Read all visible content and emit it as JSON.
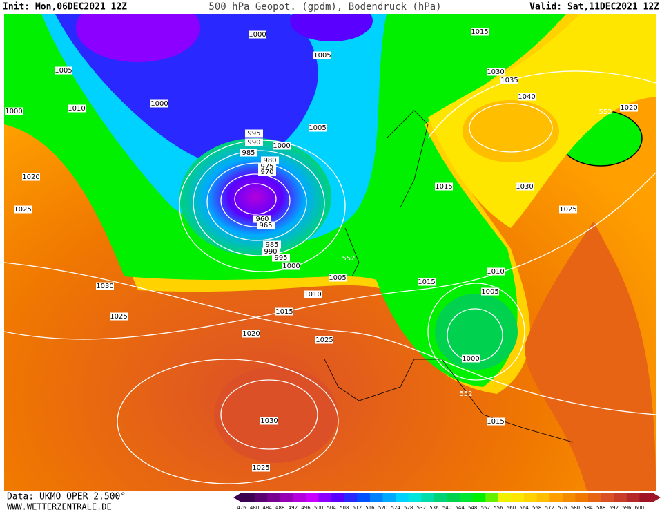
{
  "header": {
    "init": "Init: Mon,06DEC2021 12Z",
    "title": "500 hPa Geopot. (gpdm), Bodendruck (hPa)",
    "valid": "Valid: Sat,11DEC2021 12Z"
  },
  "footer": {
    "data_source": "Data: UKMO OPER 2.500°",
    "website": "WWW.WETTERZENTRALE.DE"
  },
  "map": {
    "isobar_labels": [
      1000,
      1005,
      1000,
      1010,
      1000,
      1005,
      1015,
      1030,
      1035,
      1040,
      1020,
      1005,
      995,
      990,
      1000,
      985,
      980,
      975,
      970,
      1020,
      1025,
      1015,
      1030,
      1025,
      960,
      965,
      985,
      990,
      995,
      1000,
      1005,
      1010,
      1015,
      1005,
      1010,
      1030,
      1015,
      1025,
      1020,
      1025,
      1000,
      1030,
      1015,
      1025
    ],
    "geopotential_labels": [
      552,
      552,
      552
    ]
  },
  "colorbar": {
    "labels": [
      476,
      480,
      484,
      488,
      492,
      496,
      500,
      504,
      508,
      512,
      516,
      520,
      524,
      528,
      532,
      536,
      540,
      544,
      548,
      552,
      556,
      560,
      564,
      568,
      572,
      576,
      580,
      584,
      588,
      592,
      596,
      600
    ],
    "colors": [
      "#3c0050",
      "#5a0070",
      "#780090",
      "#9600b4",
      "#b400dc",
      "#c800ff",
      "#8c00ff",
      "#5a00ff",
      "#2828ff",
      "#0050ff",
      "#0082ff",
      "#00aaff",
      "#00d2ff",
      "#00e6dc",
      "#00dcaa",
      "#00d278",
      "#00d250",
      "#00e632",
      "#00f000",
      "#64f000",
      "#f0f000",
      "#ffe600",
      "#ffd200",
      "#ffbe00",
      "#ffa000",
      "#f58c00",
      "#f07800",
      "#e66414",
      "#dc5028",
      "#c83c28",
      "#b42828",
      "#a01428"
    ]
  }
}
